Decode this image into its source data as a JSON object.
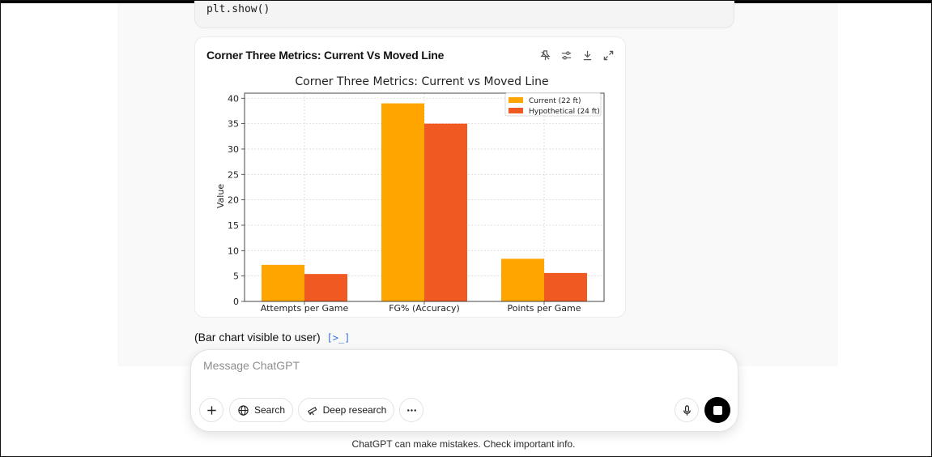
{
  "code": {
    "line": "plt.show()"
  },
  "card": {
    "title": "Corner Three Metrics: Current Vs Moved Line",
    "tools": [
      "pin-icon",
      "sliders-icon",
      "download-icon",
      "expand-icon"
    ]
  },
  "chart_data": {
    "type": "bar",
    "title": "Corner Three Metrics: Current vs Moved Line",
    "xlabel": "",
    "ylabel": "Value",
    "categories": [
      "Attempts per Game",
      "FG% (Accuracy)",
      "Points per Game"
    ],
    "series": [
      {
        "name": "Current (22 ft)",
        "values": [
          7.2,
          39,
          8.4
        ],
        "color": "#ffa500"
      },
      {
        "name": "Hypothetical (24 ft)",
        "values": [
          5.4,
          35,
          5.6
        ],
        "color": "#f05a22"
      }
    ],
    "ylim": [
      0,
      41
    ],
    "yticks": [
      "0",
      "5",
      "10",
      "15",
      "20",
      "25",
      "30",
      "35",
      "40"
    ],
    "grid": true,
    "legend_position": "top-right"
  },
  "note": {
    "text": "(Bar chart visible to user)",
    "icon": "[>_]"
  },
  "composer": {
    "placeholder": "Message ChatGPT",
    "search_label": "Search",
    "deep_research_label": "Deep research"
  },
  "footer": {
    "disclaimer": "ChatGPT can make mistakes. Check important info."
  }
}
